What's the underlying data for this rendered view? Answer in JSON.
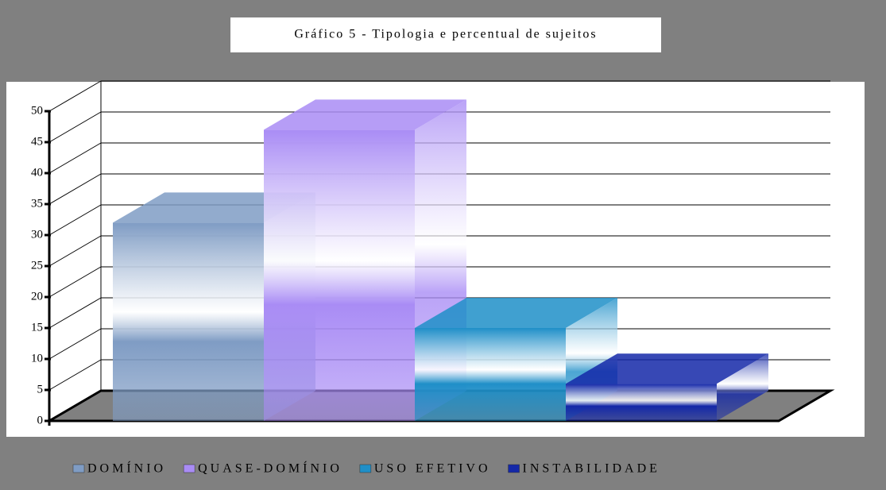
{
  "chart_data": {
    "type": "bar3d",
    "title": "Gráfico 5 - Tipologia e percentual de sujeitos",
    "series": [
      {
        "name": "DOMÍNIO",
        "color": "#7f9cc4",
        "values": [
          32
        ]
      },
      {
        "name": "QUASE-DOMÍNIO",
        "color": "#a98cf5",
        "values": [
          47
        ]
      },
      {
        "name": "USO EFETIVO",
        "color": "#1f8fc8",
        "values": [
          15
        ]
      },
      {
        "name": "INSTABILIDADE",
        "color": "#1428a8",
        "values": [
          6
        ]
      }
    ],
    "ylim": [
      0,
      50
    ],
    "yticks": [
      0,
      5,
      10,
      15,
      20,
      25,
      30,
      35,
      40,
      45,
      50
    ],
    "grid": true
  }
}
